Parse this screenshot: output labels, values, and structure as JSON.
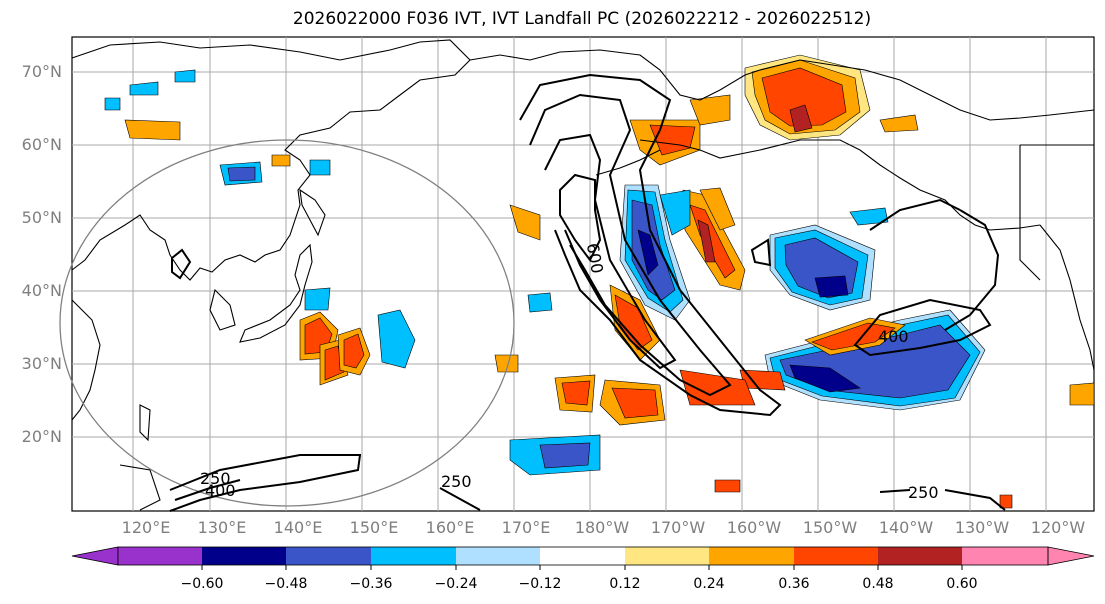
{
  "title": "2026022000 F036 IVT, IVT Landfall PC (2026022212 - 2026022512)",
  "map": {
    "lat_labels": [
      "70°N",
      "60°N",
      "50°N",
      "40°N",
      "30°N",
      "20°N"
    ],
    "lon_labels": [
      "120°E",
      "130°E",
      "140°E",
      "150°E",
      "160°E",
      "170°E",
      "180°W",
      "170°W",
      "160°W",
      "150°W",
      "140°W",
      "130°W",
      "120°W"
    ],
    "ivt_contour_labels": [
      "250",
      "400",
      "600",
      "250",
      "400",
      "250"
    ]
  },
  "colorbar": {
    "ticks": [
      "−0.60",
      "−0.48",
      "−0.36",
      "−0.24",
      "−0.12",
      "0.12",
      "0.24",
      "0.36",
      "0.48",
      "0.60"
    ],
    "colors": [
      "#9932cc",
      "#00008b",
      "#3a55c8",
      "#00bfff",
      "#b0e0ff",
      "#ffffff",
      "#ffe680",
      "#ffa500",
      "#ff4500",
      "#b22222",
      "#ff85b0"
    ]
  }
}
